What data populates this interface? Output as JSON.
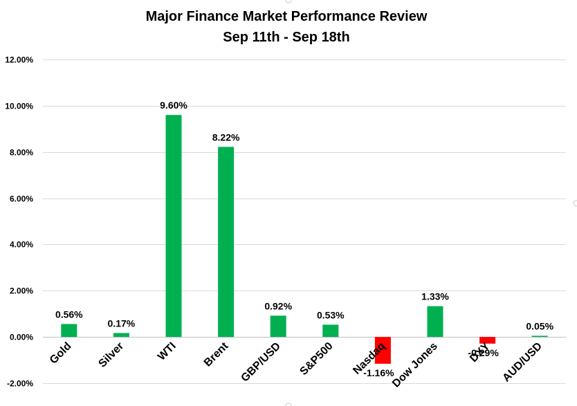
{
  "chart_data": {
    "type": "bar",
    "title": "Major Finance Market Performance Review",
    "subtitle": "Sep 11th - Sep 18th",
    "xlabel": "",
    "ylabel": "",
    "ylim": [
      -0.02,
      0.12
    ],
    "yticks": [
      -0.02,
      0.0,
      0.02,
      0.04,
      0.06,
      0.08,
      0.1,
      0.12
    ],
    "ytick_labels": [
      "-2.00%",
      "0.00%",
      "2.00%",
      "4.00%",
      "6.00%",
      "8.00%",
      "10.00%",
      "12.00%"
    ],
    "grid": true,
    "legend": "none",
    "categories": [
      "Gold",
      "Silver",
      "WTI",
      "Brent",
      "GBP/USD",
      "S&P500",
      "Nasdaq",
      "Dow Jones",
      "DXY",
      "AUD/USD"
    ],
    "values": [
      0.0056,
      0.0017,
      0.096,
      0.0822,
      0.0092,
      0.0053,
      -0.0116,
      0.0133,
      -0.0029,
      0.0005
    ],
    "data_labels": [
      "0.56%",
      "0.17%",
      "9.60%",
      "8.22%",
      "0.92%",
      "0.53%",
      "-1.16%",
      "1.33%",
      "-0.29%",
      "0.05%"
    ],
    "colors": {
      "positive": "#00b050",
      "negative": "#ff0000"
    }
  }
}
